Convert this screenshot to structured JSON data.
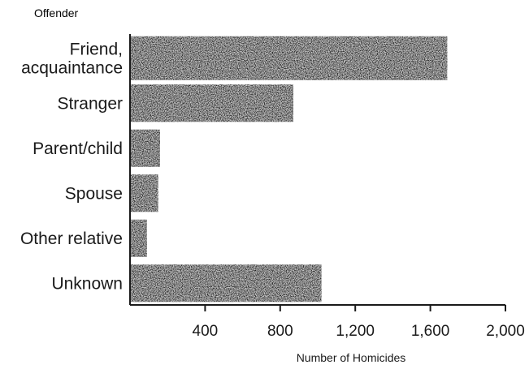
{
  "chart_data": {
    "type": "bar",
    "orientation": "horizontal",
    "ylabel": "Offender",
    "xlabel": "Number of Homicides",
    "categories": [
      [
        "Friend,",
        "acquaintance"
      ],
      [
        "Stranger"
      ],
      [
        "Parent/child"
      ],
      [
        "Spouse"
      ],
      [
        "Other relative"
      ],
      [
        "Unknown"
      ]
    ],
    "values": [
      1690,
      870,
      160,
      150,
      90,
      1020
    ],
    "xlim": [
      0,
      2000
    ],
    "xticks": [
      400,
      800,
      1200,
      1600,
      2000
    ],
    "xtick_labels": [
      "400",
      "800",
      "1,200",
      "1,600",
      "2,000"
    ],
    "grid": false,
    "bar_color": "#262626"
  }
}
